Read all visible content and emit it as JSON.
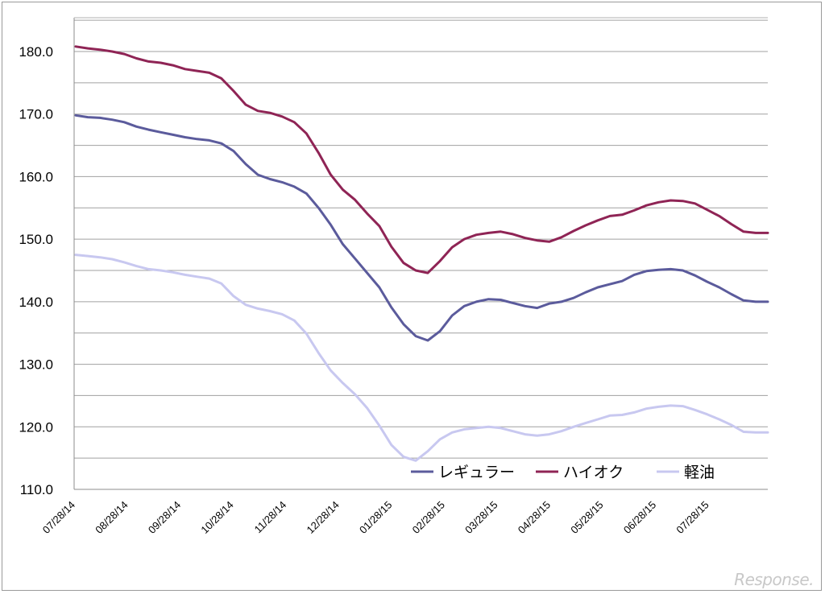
{
  "chart_data": {
    "type": "line",
    "title": "",
    "xlabel": "",
    "ylabel": "",
    "ylim": [
      110,
      180
    ],
    "y_ticks": [
      "110.0",
      "120.0",
      "130.0",
      "140.0",
      "150.0",
      "160.0",
      "170.0",
      "180.0"
    ],
    "x_ticks": [
      "07/28/14",
      "08/28/14",
      "09/28/14",
      "10/28/14",
      "11/28/14",
      "12/28/14",
      "01/28/15",
      "02/28/15",
      "03/28/15",
      "04/28/15",
      "05/28/15",
      "06/28/15",
      "07/28/15"
    ],
    "grid": "horizontal",
    "legend_position": "bottom-right",
    "x": [
      "2014-07-28",
      "2014-08-04",
      "2014-08-11",
      "2014-08-18",
      "2014-08-25",
      "2014-09-01",
      "2014-09-08",
      "2014-09-15",
      "2014-09-22",
      "2014-09-29",
      "2014-10-06",
      "2014-10-13",
      "2014-10-20",
      "2014-10-27",
      "2014-11-03",
      "2014-11-10",
      "2014-11-17",
      "2014-11-24",
      "2014-12-01",
      "2014-12-08",
      "2014-12-15",
      "2014-12-22",
      "2014-12-29",
      "2015-01-05",
      "2015-01-12",
      "2015-01-19",
      "2015-01-26",
      "2015-02-02",
      "2015-02-09",
      "2015-02-16",
      "2015-02-23",
      "2015-03-02",
      "2015-03-09",
      "2015-03-16",
      "2015-03-23",
      "2015-03-30",
      "2015-04-06",
      "2015-04-13",
      "2015-04-20",
      "2015-04-27",
      "2015-05-04",
      "2015-05-11",
      "2015-05-18",
      "2015-05-25",
      "2015-06-01",
      "2015-06-08",
      "2015-06-15",
      "2015-06-22",
      "2015-06-29",
      "2015-07-06",
      "2015-07-13",
      "2015-07-20",
      "2015-07-27",
      "2015-08-03",
      "2015-08-10",
      "2015-08-17",
      "2015-08-24",
      "2015-08-31"
    ],
    "series": [
      {
        "name": "レギュラー",
        "color": "#5b5b9c",
        "values": [
          169.8,
          169.5,
          169.4,
          169.1,
          168.7,
          168.0,
          167.5,
          167.1,
          166.7,
          166.3,
          166.0,
          165.8,
          165.3,
          164.1,
          162.0,
          160.3,
          159.6,
          159.1,
          158.4,
          157.3,
          155.0,
          152.3,
          149.2,
          146.9,
          144.6,
          142.3,
          139.1,
          136.4,
          134.5,
          133.8,
          135.3,
          137.8,
          139.3,
          140.0,
          140.4,
          140.3,
          139.8,
          139.3,
          139.0,
          139.7,
          140.0,
          140.6,
          141.5,
          142.3,
          142.8,
          143.3,
          144.3,
          144.9,
          145.1,
          145.2,
          145.0,
          144.2,
          143.2,
          142.3,
          141.2,
          140.2,
          140.0,
          140.0
        ]
      },
      {
        "name": "ハイオク",
        "color": "#8f2455",
        "values": [
          180.8,
          180.5,
          180.3,
          180.0,
          179.6,
          178.9,
          178.4,
          178.2,
          177.8,
          177.2,
          176.9,
          176.6,
          175.7,
          173.7,
          171.5,
          170.5,
          170.2,
          169.6,
          168.7,
          166.9,
          163.8,
          160.3,
          157.9,
          156.3,
          154.1,
          152.1,
          148.8,
          146.2,
          145.0,
          144.6,
          146.5,
          148.7,
          150.0,
          150.7,
          151.0,
          151.2,
          150.8,
          150.2,
          149.8,
          149.6,
          150.3,
          151.3,
          152.2,
          153.0,
          153.7,
          153.9,
          154.6,
          155.4,
          155.9,
          156.2,
          156.1,
          155.7,
          154.7,
          153.7,
          152.4,
          151.2,
          151.0,
          151.0
        ]
      },
      {
        "name": "軽油",
        "color": "#c8c8f0",
        "values": [
          147.5,
          147.3,
          147.1,
          146.8,
          146.3,
          145.7,
          145.2,
          145.0,
          144.7,
          144.3,
          144.0,
          143.7,
          142.9,
          140.9,
          139.5,
          138.9,
          138.5,
          138.0,
          137.0,
          134.9,
          131.8,
          129.0,
          127.0,
          125.2,
          123.0,
          120.2,
          117.1,
          115.2,
          114.6,
          116.1,
          118.0,
          119.1,
          119.6,
          119.8,
          120.0,
          119.8,
          119.3,
          118.8,
          118.6,
          118.8,
          119.3,
          120.0,
          120.6,
          121.2,
          121.8,
          121.9,
          122.3,
          122.9,
          123.2,
          123.4,
          123.3,
          122.7,
          122.0,
          121.2,
          120.3,
          119.2,
          119.1,
          119.1
        ]
      }
    ]
  },
  "watermark": "Response."
}
